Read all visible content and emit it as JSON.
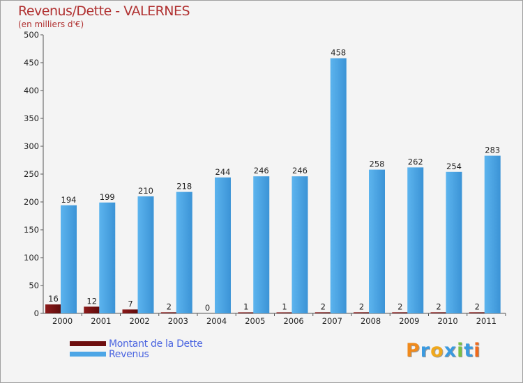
{
  "header": {
    "title": "Revenus/Dette - VALERNES",
    "subtitle": "(en milliers d'€)"
  },
  "chart_data": {
    "type": "bar",
    "title": "Revenus/Dette - VALERNES",
    "ylabel": "(en milliers d'€)",
    "xlabel": "",
    "ylim": [
      0,
      500
    ],
    "yticks": [
      0,
      50,
      100,
      150,
      200,
      250,
      300,
      350,
      400,
      450,
      500
    ],
    "grid": false,
    "categories": [
      "2000",
      "2001",
      "2002",
      "2003",
      "2004",
      "2005",
      "2006",
      "2007",
      "2008",
      "2009",
      "2010",
      "2011"
    ],
    "series": [
      {
        "name": "Montant de la Dette",
        "color": "#7a1414",
        "values": [
          16,
          12,
          7,
          2,
          0,
          1,
          1,
          2,
          2,
          2,
          2,
          2
        ]
      },
      {
        "name": "Revenus",
        "color": "#4da6e6",
        "values": [
          194,
          199,
          210,
          218,
          244,
          246,
          246,
          458,
          258,
          262,
          254,
          283
        ]
      }
    ],
    "legend": "bottom-left"
  },
  "legend": {
    "items": [
      {
        "label": "Montant de la Dette",
        "color": "#6e0f0f"
      },
      {
        "label": "Revenus",
        "color": "#4da6e6"
      }
    ]
  },
  "logo": {
    "letters": [
      "P",
      "r",
      "o",
      "x",
      "i",
      "t",
      "i"
    ],
    "colors": [
      "#f08a1c",
      "#3a9ae0",
      "#f0a81c",
      "#3a9ae0",
      "#7ac043",
      "#3a9ae0",
      "#f06a1c"
    ]
  }
}
